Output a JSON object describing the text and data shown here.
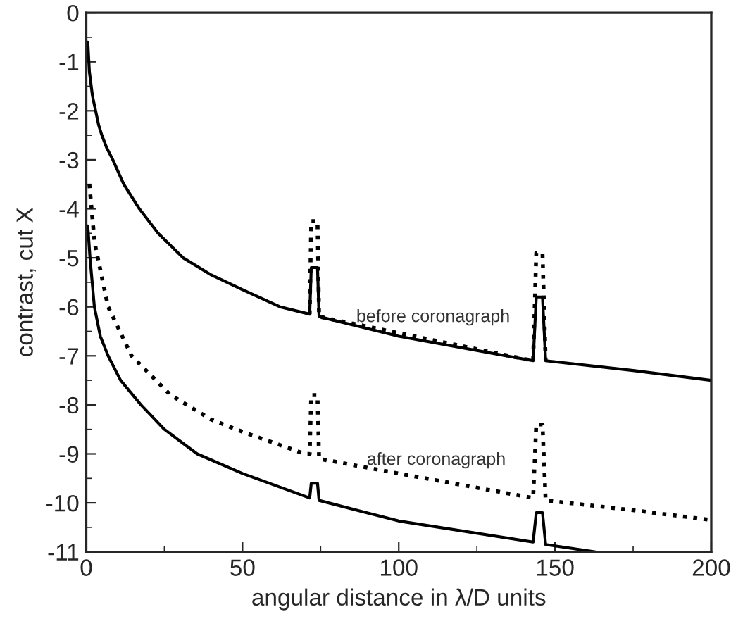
{
  "chart_data": {
    "type": "line",
    "xlabel": "angular distance in λ/D units",
    "ylabel": "contrast, cut X",
    "xlim": [
      0,
      200
    ],
    "ylim": [
      -11,
      0
    ],
    "xticks": [
      0,
      50,
      100,
      150,
      200
    ],
    "yticks": [
      {
        "value": 0,
        "label": "0"
      },
      {
        "value": -1,
        "label": "-1"
      },
      {
        "value": -2,
        "label": "-2"
      },
      {
        "value": -3,
        "label": "-3"
      },
      {
        "value": -4,
        "label": "-4"
      },
      {
        "value": -5,
        "label": "-5"
      },
      {
        "value": -6,
        "label": "-6"
      },
      {
        "value": -7,
        "label": "-7"
      },
      {
        "value": -8,
        "label": "-8"
      },
      {
        "value": -9,
        "label": "-9"
      },
      {
        "value": -10,
        "label": "-10"
      },
      {
        "value": -11,
        "label": "-11"
      }
    ],
    "grid": false,
    "legend": false,
    "series": [
      {
        "color": "#000000",
        "line_style": "solid",
        "x": [
          0.5,
          1,
          2,
          3,
          4,
          5,
          6.5,
          8.5,
          12,
          17,
          23,
          31,
          40,
          50,
          62,
          71.5,
          72,
          74,
          74.5,
          100,
          143,
          144,
          146,
          147,
          175,
          200
        ],
        "values": [
          -0.6,
          -1.2,
          -1.7,
          -2.0,
          -2.3,
          -2.5,
          -2.75,
          -3.0,
          -3.5,
          -4.0,
          -4.5,
          -5.0,
          -5.35,
          -5.65,
          -6.0,
          -6.15,
          -5.2,
          -5.2,
          -6.2,
          -6.6,
          -7.1,
          -5.8,
          -5.8,
          -7.1,
          -7.3,
          -7.5
        ]
      },
      {
        "color": "#000000",
        "line_style": "dotted",
        "x": [
          71.5,
          72,
          74,
          74.5,
          143,
          144,
          146,
          147
        ],
        "values": [
          -6.15,
          -4.25,
          -4.25,
          -6.2,
          -7.1,
          -4.9,
          -4.9,
          -7.1
        ]
      },
      {
        "color": "#000000",
        "line_style": "dotted",
        "x": [
          1,
          2.7,
          7,
          14.5,
          27,
          40,
          50,
          70,
          71.5,
          72,
          74,
          74.5,
          100,
          143,
          144,
          146,
          147,
          175,
          200
        ],
        "values": [
          -3.5,
          -4.7,
          -6.0,
          -7.0,
          -7.8,
          -8.3,
          -8.55,
          -9.0,
          -9.0,
          -7.8,
          -7.8,
          -9.1,
          -9.4,
          -9.9,
          -8.4,
          -8.4,
          -9.95,
          -10.15,
          -10.35
        ]
      },
      {
        "color": "#000000",
        "line_style": "solid",
        "x": [
          0.5,
          1.2,
          2.6,
          4.5,
          7,
          11,
          17.5,
          25,
          35.5,
          50,
          71.5,
          72,
          74,
          74.5,
          100,
          143,
          144,
          146,
          147,
          163
        ],
        "values": [
          -4.35,
          -5.0,
          -6.0,
          -6.6,
          -7.0,
          -7.5,
          -8.0,
          -8.5,
          -9.0,
          -9.4,
          -9.9,
          -9.6,
          -9.6,
          -9.95,
          -10.37,
          -10.8,
          -10.2,
          -10.2,
          -10.85,
          -11.0
        ]
      }
    ],
    "annotations": [
      "before coronagraph",
      "after coronagraph"
    ]
  }
}
